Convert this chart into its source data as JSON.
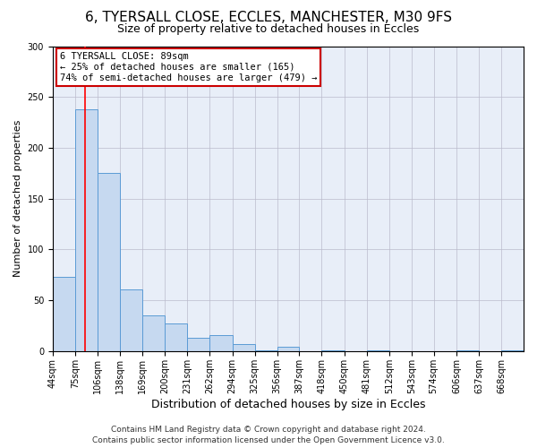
{
  "title": "6, TYERSALL CLOSE, ECCLES, MANCHESTER, M30 9FS",
  "subtitle": "Size of property relative to detached houses in Eccles",
  "xlabel": "Distribution of detached houses by size in Eccles",
  "ylabel": "Number of detached properties",
  "bin_edges": [
    44,
    75,
    106,
    138,
    169,
    200,
    231,
    262,
    294,
    325,
    356,
    387,
    418,
    450,
    481,
    512,
    543,
    574,
    606,
    637,
    668
  ],
  "bar_heights": [
    73,
    238,
    175,
    61,
    35,
    27,
    13,
    16,
    7,
    1,
    4,
    0,
    1,
    0,
    1,
    0,
    0,
    0,
    1,
    0,
    1
  ],
  "bar_color": "#c6d9f0",
  "bar_edge_color": "#5b9bd5",
  "red_line_x": 89,
  "ylim": [
    0,
    300
  ],
  "yticks": [
    0,
    50,
    100,
    150,
    200,
    250,
    300
  ],
  "annotation_title": "6 TYERSALL CLOSE: 89sqm",
  "annotation_line1": "← 25% of detached houses are smaller (165)",
  "annotation_line2": "74% of semi-detached houses are larger (479) →",
  "annotation_box_color": "#ffffff",
  "annotation_border_color": "#cc0000",
  "footer_line1": "Contains HM Land Registry data © Crown copyright and database right 2024.",
  "footer_line2": "Contains public sector information licensed under the Open Government Licence v3.0.",
  "plot_bg_color": "#e8eef8",
  "title_fontsize": 11,
  "subtitle_fontsize": 9,
  "xlabel_fontsize": 9,
  "ylabel_fontsize": 8,
  "tick_fontsize": 7,
  "annotation_fontsize": 7.5,
  "footer_fontsize": 6.5
}
